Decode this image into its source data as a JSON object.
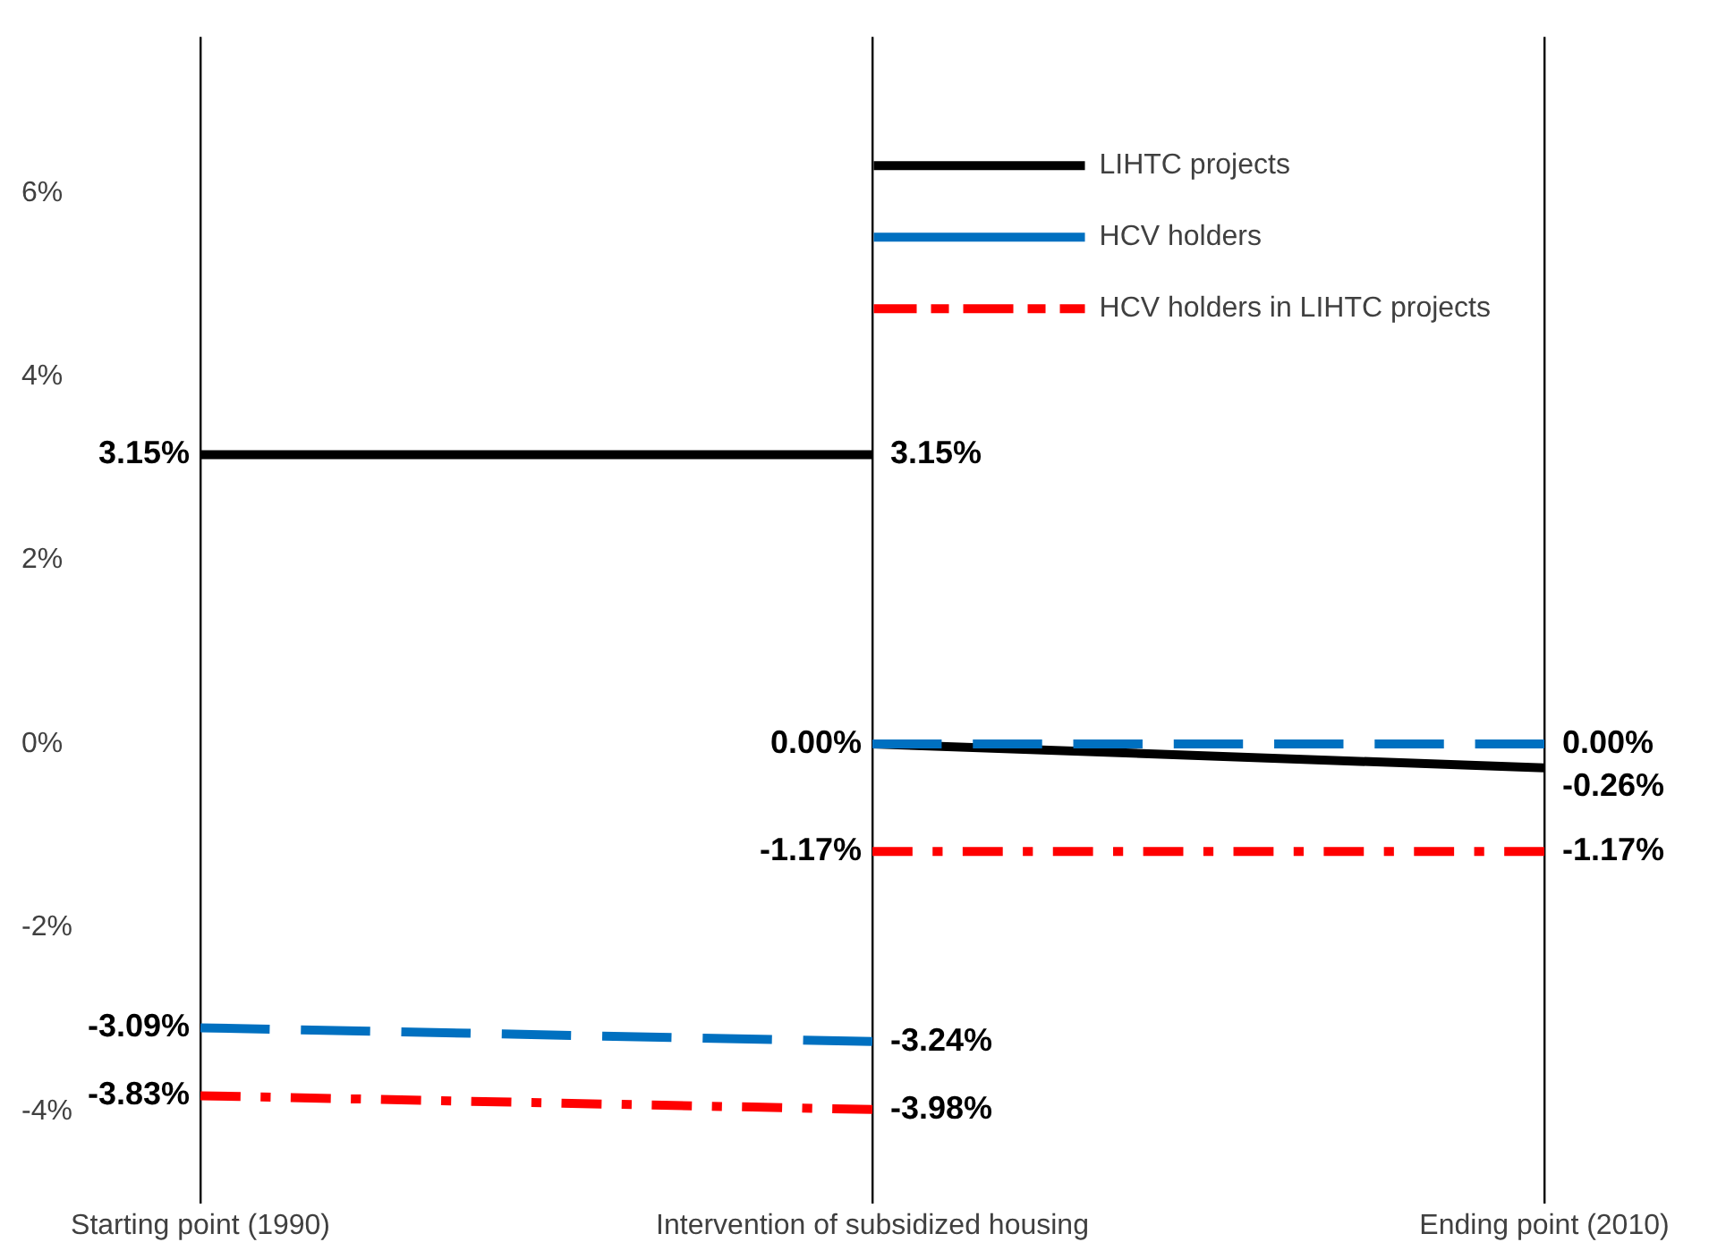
{
  "chart_data": {
    "type": "line",
    "categories": [
      "Starting point (1990)",
      "Intervention of subsidized housing",
      "Ending point (2010)"
    ],
    "ylim": [
      -5,
      7.7
    ],
    "yticks": [
      {
        "value": -4,
        "label": "-4%"
      },
      {
        "value": -2,
        "label": "-2%"
      },
      {
        "value": 0,
        "label": "0%"
      },
      {
        "value": 2,
        "label": "2%"
      },
      {
        "value": 4,
        "label": "4%"
      },
      {
        "value": 6,
        "label": "6%"
      }
    ],
    "grid": "x",
    "legend": "top right",
    "series": [
      {
        "name": "LIHTC projects",
        "color": "#000000",
        "line_style": "solid",
        "values": [
          3.15,
          3.15,
          null
        ],
        "value_labels": [
          "3.15%",
          "3.15%",
          null
        ]
      },
      {
        "color": "#000000",
        "line_style": "solid",
        "values": [
          null,
          0,
          -0.26
        ],
        "value_labels": [
          null,
          null,
          "-0.26%"
        ]
      },
      {
        "name": "HCV holders",
        "color": "#0070c0",
        "line_style": "dashed",
        "values": [
          -3.09,
          -3.24,
          null
        ],
        "value_labels": [
          "-3.09%",
          "-3.24%",
          null
        ]
      },
      {
        "color": "#0070c0",
        "line_style": "dashed",
        "values": [
          null,
          0,
          0
        ],
        "value_labels": [
          null,
          "0.00%",
          "0.00%"
        ]
      },
      {
        "name": "HCV holders in LIHTC projects",
        "color": "#ff0000",
        "line_style": "dashdot",
        "values": [
          -3.83,
          -3.98,
          null
        ],
        "value_labels": [
          "-3.83%",
          "-3.98%",
          null
        ]
      },
      {
        "color": "#ff0000",
        "line_style": "dashdot",
        "values": [
          null,
          -1.17,
          -1.17
        ],
        "value_labels": [
          null,
          "-1.17%",
          "-1.17%"
        ]
      }
    ]
  }
}
